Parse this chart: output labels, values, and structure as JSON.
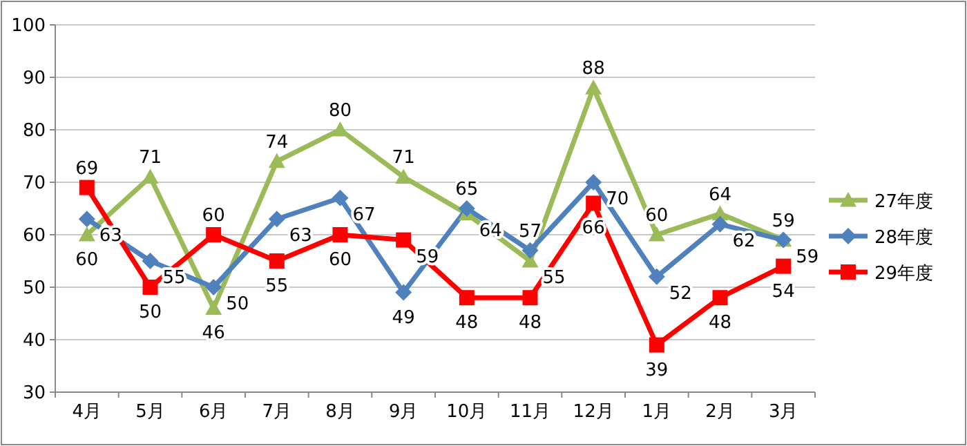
{
  "chart_data": {
    "type": "line",
    "categories": [
      "4月",
      "5月",
      "6月",
      "7月",
      "8月",
      "9月",
      "10月",
      "11月",
      "12月",
      "1月",
      "2月",
      "3月"
    ],
    "series": [
      {
        "name": "27年度",
        "color": "#9bbb59",
        "marker": "triangle",
        "values": [
          60,
          71,
          46,
          74,
          80,
          71,
          64,
          55,
          88,
          60,
          64,
          59
        ]
      },
      {
        "name": "28年度",
        "color": "#4f81bd",
        "marker": "diamond",
        "values": [
          63,
          55,
          50,
          63,
          67,
          49,
          65,
          57,
          70,
          52,
          62,
          59
        ]
      },
      {
        "name": "29年度",
        "color": "#ff0000",
        "marker": "square",
        "values": [
          69,
          50,
          60,
          55,
          60,
          59,
          48,
          48,
          66,
          39,
          48,
          54
        ]
      }
    ],
    "ylim": [
      30,
      100
    ],
    "yticks": [
      30,
      40,
      50,
      60,
      70,
      80,
      90,
      100
    ],
    "grid": "y",
    "legend": "right",
    "data_labels": true
  }
}
